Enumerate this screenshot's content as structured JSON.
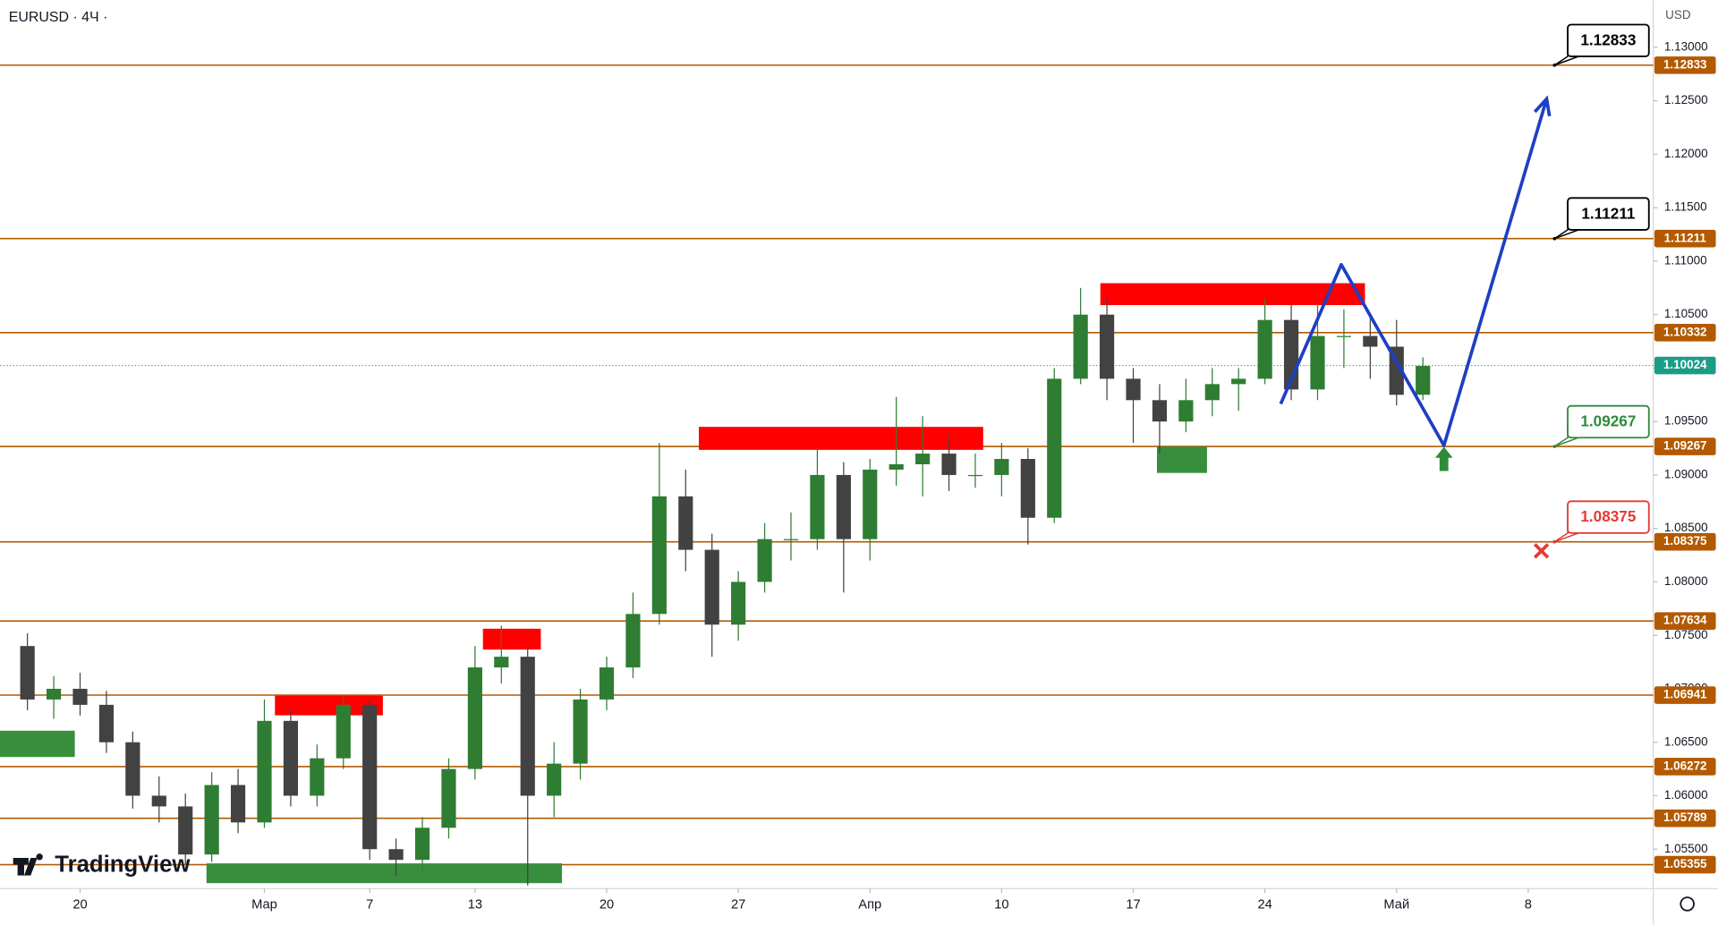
{
  "header": {
    "symbol": "EURUSD · 4Ч ·",
    "currency": "USD",
    "logo": "TradingView"
  },
  "chart_data": {
    "type": "candlestick",
    "xlim": [
      -3.0417,
      59.75
    ],
    "ylim": [
      1.05131,
      1.13441
    ],
    "xticks": [
      {
        "value": 0,
        "label": "20"
      },
      {
        "value": 7,
        "label": "Мар"
      },
      {
        "value": 11,
        "label": "7"
      },
      {
        "value": 15,
        "label": "13"
      },
      {
        "value": 20,
        "label": "20"
      },
      {
        "value": 25,
        "label": "27"
      },
      {
        "value": 30,
        "label": "Апр"
      },
      {
        "value": 35,
        "label": "10"
      },
      {
        "value": 40,
        "label": "17"
      },
      {
        "value": 45,
        "label": "24"
      },
      {
        "value": 50,
        "label": "Май"
      },
      {
        "value": 55,
        "label": "8"
      }
    ],
    "yticks": [
      {
        "value": 1.055,
        "label": "1.05500"
      },
      {
        "value": 1.06,
        "label": "1.06000"
      },
      {
        "value": 1.065,
        "label": "1.06500"
      },
      {
        "value": 1.07,
        "label": "1.07000"
      },
      {
        "value": 1.075,
        "label": "1.07500"
      },
      {
        "value": 1.08,
        "label": "1.08000"
      },
      {
        "value": 1.085,
        "label": "1.08500"
      },
      {
        "value": 1.09,
        "label": "1.09000"
      },
      {
        "value": 1.095,
        "label": "1.09500"
      },
      {
        "value": 1.1,
        "label": "1.10000"
      },
      {
        "value": 1.105,
        "label": "1.10500"
      },
      {
        "value": 1.11,
        "label": "1.11000"
      },
      {
        "value": 1.115,
        "label": "1.11500"
      },
      {
        "value": 1.12,
        "label": "1.12000"
      },
      {
        "value": 1.125,
        "label": "1.12500"
      },
      {
        "value": 1.13,
        "label": "1.13000"
      }
    ],
    "up_color": "#2e7d32",
    "down_color": "#424242",
    "x": [
      -2,
      -1,
      0,
      1,
      2,
      3,
      4,
      5,
      6,
      7,
      8,
      9,
      10,
      11,
      12,
      13,
      14,
      15,
      16,
      17,
      18,
      19,
      20,
      21,
      22,
      23,
      24,
      25,
      26,
      27,
      28,
      29,
      30,
      31,
      32,
      33,
      34,
      35,
      36,
      37,
      38,
      39,
      40,
      41,
      42,
      43,
      44,
      45,
      46,
      47,
      48,
      49,
      50,
      51
    ],
    "open": [
      1.074,
      1.069,
      1.07,
      1.0685,
      1.065,
      1.06,
      1.059,
      1.0545,
      1.061,
      1.0575,
      1.067,
      1.06,
      1.0635,
      1.0685,
      1.055,
      1.054,
      1.057,
      1.0625,
      1.072,
      1.073,
      1.06,
      1.063,
      1.069,
      1.072,
      1.077,
      1.088,
      1.083,
      1.076,
      1.08,
      1.084,
      1.084,
      1.09,
      1.084,
      1.0905,
      1.091,
      1.092,
      1.09,
      1.09,
      1.0915,
      1.086,
      1.099,
      1.105,
      1.099,
      1.097,
      1.095,
      1.097,
      1.0985,
      1.099,
      1.1045,
      1.098,
      1.103,
      1.103,
      1.102,
      1.0975
    ],
    "high": [
      1.0752,
      1.0712,
      1.0715,
      1.0698,
      1.066,
      1.0618,
      1.0602,
      1.0622,
      1.0625,
      1.069,
      1.068,
      1.0648,
      1.0694,
      1.069,
      1.056,
      1.058,
      1.0635,
      1.074,
      1.0759,
      1.0738,
      1.065,
      1.07,
      1.073,
      1.079,
      1.093,
      1.0905,
      1.0845,
      1.081,
      1.0855,
      1.0865,
      1.0925,
      1.0912,
      1.0915,
      1.0973,
      1.0955,
      1.0935,
      1.092,
      1.093,
      1.0925,
      1.1,
      1.1075,
      1.1065,
      1.1,
      1.0985,
      1.099,
      1.1,
      1.1,
      1.1065,
      1.106,
      1.106,
      1.1055,
      1.1048,
      1.1045,
      1.101
    ],
    "low": [
      1.068,
      1.0672,
      1.0675,
      1.064,
      1.0588,
      1.0575,
      1.0536,
      1.0538,
      1.0565,
      1.057,
      1.059,
      1.059,
      1.0625,
      1.054,
      1.0525,
      1.053,
      1.056,
      1.0615,
      1.0705,
      1.0516,
      1.058,
      1.0615,
      1.068,
      1.071,
      1.076,
      1.081,
      1.073,
      1.0745,
      1.079,
      1.082,
      1.083,
      1.079,
      1.082,
      1.089,
      1.088,
      1.0885,
      1.0888,
      1.088,
      1.0835,
      1.0855,
      1.0985,
      1.097,
      1.093,
      1.092,
      1.094,
      1.0955,
      1.096,
      1.0985,
      1.097,
      1.097,
      1.1,
      1.099,
      1.0965,
      1.097
    ],
    "close": [
      1.069,
      1.07,
      1.0685,
      1.065,
      1.06,
      1.059,
      1.0545,
      1.061,
      1.0575,
      1.067,
      1.06,
      1.0635,
      1.0685,
      1.055,
      1.054,
      1.057,
      1.0625,
      1.072,
      1.073,
      1.06,
      1.063,
      1.069,
      1.072,
      1.077,
      1.088,
      1.083,
      1.076,
      1.08,
      1.084,
      1.084,
      1.09,
      1.084,
      1.0905,
      1.091,
      1.092,
      1.09,
      1.09,
      1.0915,
      1.086,
      1.099,
      1.105,
      1.099,
      1.097,
      1.095,
      1.097,
      1.0985,
      1.099,
      1.1045,
      1.098,
      1.103,
      1.103,
      1.102,
      1.0975,
      1.1002
    ],
    "level_color": "#b35a00",
    "levels": [
      {
        "value": 1.12833
      },
      {
        "value": 1.11211
      },
      {
        "value": 1.10332
      },
      {
        "value": 1.09267
      },
      {
        "value": 1.08375
      },
      {
        "value": 1.07634
      },
      {
        "value": 1.06941
      },
      {
        "value": 1.06272
      },
      {
        "value": 1.05789
      },
      {
        "value": 1.05355
      }
    ],
    "last_price": {
      "value": 1.10024,
      "color": "#1c9c86"
    },
    "zones": [
      {
        "x": [
          7.4,
          11.5
        ],
        "y": [
          1.06752,
          1.06936
        ],
        "color": "#ff0000"
      },
      {
        "x": [
          15.3,
          17.5
        ],
        "y": [
          1.07367,
          1.07562
        ],
        "color": "#ff0000"
      },
      {
        "x": [
          23.5,
          34.3
        ],
        "y": [
          1.09235,
          1.0945
        ],
        "color": "#ff0000"
      },
      {
        "x": [
          38.75,
          48.8
        ],
        "y": [
          1.10589,
          1.10794
        ],
        "color": "#ff0000"
      },
      {
        "x": [
          -3.0417,
          -0.2
        ],
        "y": [
          1.06362,
          1.06608
        ],
        "color": "#388e3c"
      },
      {
        "x": [
          4.8,
          18.3
        ],
        "y": [
          1.05182,
          1.05367
        ],
        "color": "#388e3c"
      },
      {
        "x": [
          40.9,
          42.8
        ],
        "y": [
          1.09019,
          1.09265
        ],
        "color": "#388e3c"
      }
    ],
    "projection": {
      "x": [
        45.6,
        47.9,
        51.8,
        55.7
      ],
      "y": [
        1.09665,
        1.10968,
        1.09276,
        1.12518
      ],
      "color": "#1e3fc4"
    },
    "buy_arrow": {
      "x": 51.8,
      "y": 1.0915,
      "color": "#2e8b3a"
    },
    "stop_cross": {
      "x": 55.5,
      "y": 1.0829,
      "color": "#e53935"
    },
    "callouts": [
      {
        "x": 56.0,
        "value": 1.12833,
        "color": "#000000"
      },
      {
        "x": 56.0,
        "value": 1.11211,
        "color": "#000000"
      },
      {
        "x": 56.0,
        "value": 1.09267,
        "color": "#2e8b3a"
      },
      {
        "x": 56.0,
        "value": 1.08375,
        "color": "#e53935"
      }
    ]
  }
}
